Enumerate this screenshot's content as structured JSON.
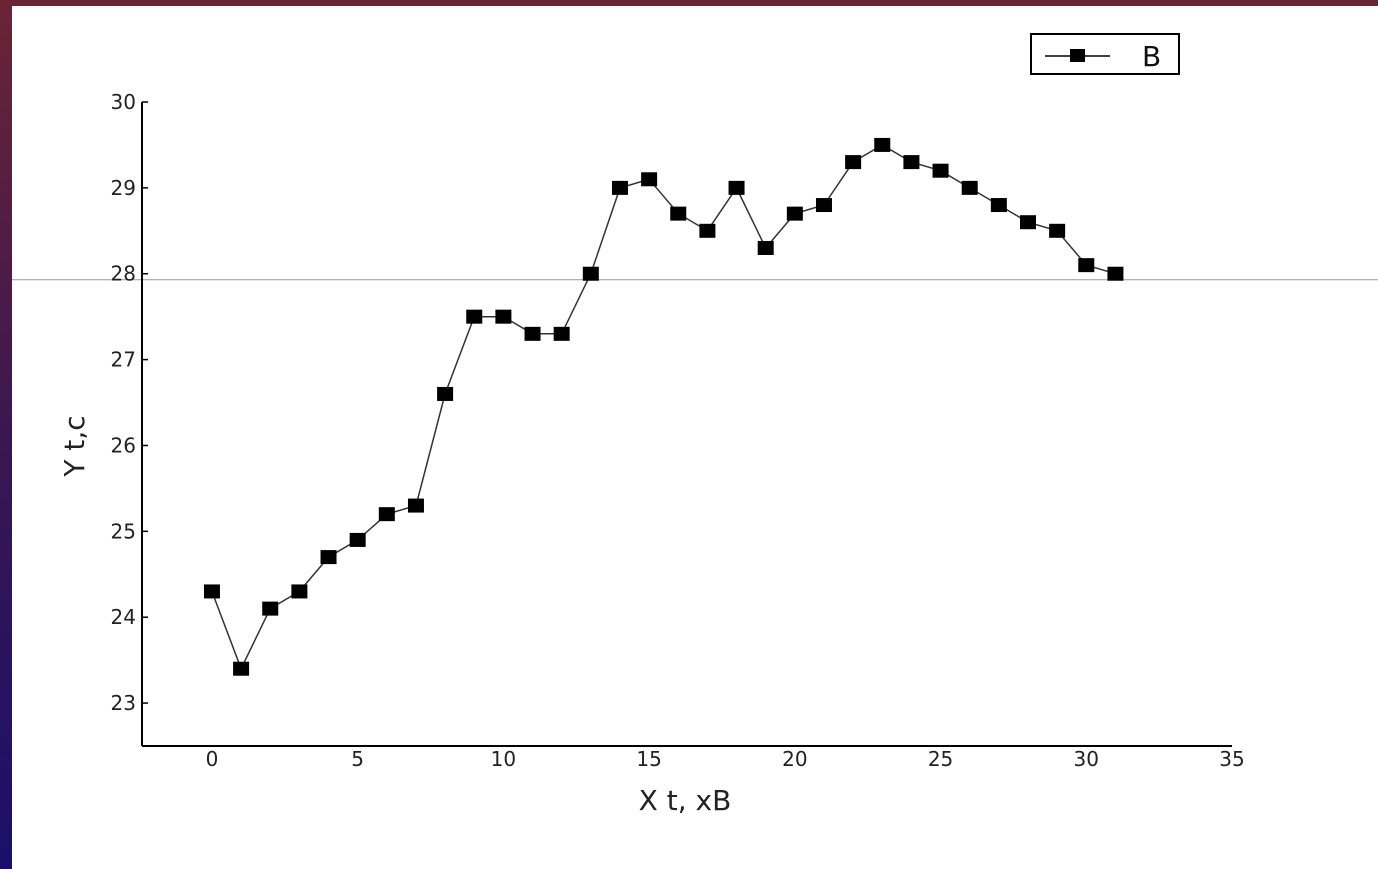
{
  "chart_data": {
    "type": "line",
    "xlabel": "X  t, xB",
    "ylabel": "Y t,c",
    "xlim": [
      -2.4,
      35
    ],
    "ylim": [
      22.5,
      30
    ],
    "xticks": [
      0,
      5,
      10,
      15,
      20,
      25,
      30,
      35
    ],
    "yticks": [
      23,
      24,
      25,
      26,
      27,
      28,
      29,
      30
    ],
    "grid": false,
    "legend_position": "top-right",
    "reference_line_y": 27.93,
    "colors": {
      "line": "#333333",
      "marker": "#000000",
      "reference_line": "#9a9a9a"
    },
    "series": [
      {
        "name": "B",
        "x": [
          0,
          1,
          2,
          3,
          4,
          5,
          6,
          7,
          8,
          9,
          10,
          11,
          12,
          13,
          14,
          15,
          16,
          17,
          18,
          19,
          20,
          21,
          22,
          23,
          24,
          25,
          26,
          27,
          28,
          29,
          30,
          31
        ],
        "y": [
          24.3,
          23.4,
          24.1,
          24.3,
          24.7,
          24.9,
          25.2,
          25.3,
          26.6,
          27.5,
          27.5,
          27.3,
          27.3,
          28.0,
          29.0,
          29.1,
          28.7,
          28.5,
          29.0,
          28.3,
          28.7,
          28.8,
          29.3,
          29.5,
          29.3,
          29.2,
          29.0,
          28.8,
          28.6,
          28.5,
          28.1,
          28.0
        ]
      }
    ]
  }
}
